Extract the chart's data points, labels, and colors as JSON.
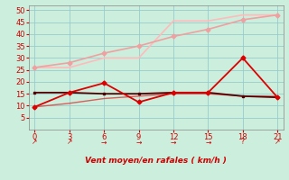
{
  "xlabel": "Vent moyen/en rafales ( km/h )",
  "x": [
    0,
    3,
    6,
    9,
    12,
    15,
    18,
    21
  ],
  "line1_y": [
    26,
    28,
    32,
    35,
    39,
    42,
    46,
    48
  ],
  "line2_y": [
    26,
    26,
    30,
    30,
    45.5,
    45.5,
    48,
    48
  ],
  "line3_y": [
    9.5,
    15.5,
    19.5,
    11.5,
    15.5,
    15.5,
    30,
    13.5
  ],
  "line4_y": [
    15.5,
    15.5,
    15.0,
    15.0,
    15.5,
    15.5,
    14.0,
    13.5
  ],
  "line5_y": [
    9.5,
    11,
    13,
    14,
    15,
    15,
    14,
    14
  ],
  "line1_color": "#f0a0a0",
  "line2_color": "#ffbbbb",
  "line3_color": "#dd0000",
  "line4_color": "#550000",
  "line5_color": "#dd2222",
  "bg_color": "#cceedd",
  "grid_color": "#99cccc",
  "ylim": [
    0,
    52
  ],
  "xlim": [
    -0.5,
    21.5
  ],
  "yticks": [
    5,
    10,
    15,
    20,
    25,
    30,
    35,
    40,
    45,
    50
  ],
  "xticks": [
    0,
    3,
    6,
    9,
    12,
    15,
    18,
    21
  ],
  "xlabel_color": "#cc0000",
  "tick_color": "#cc0000",
  "arrow_labels": [
    "↗",
    "↗",
    "→",
    "→",
    "→",
    "→",
    "?",
    "↗"
  ]
}
